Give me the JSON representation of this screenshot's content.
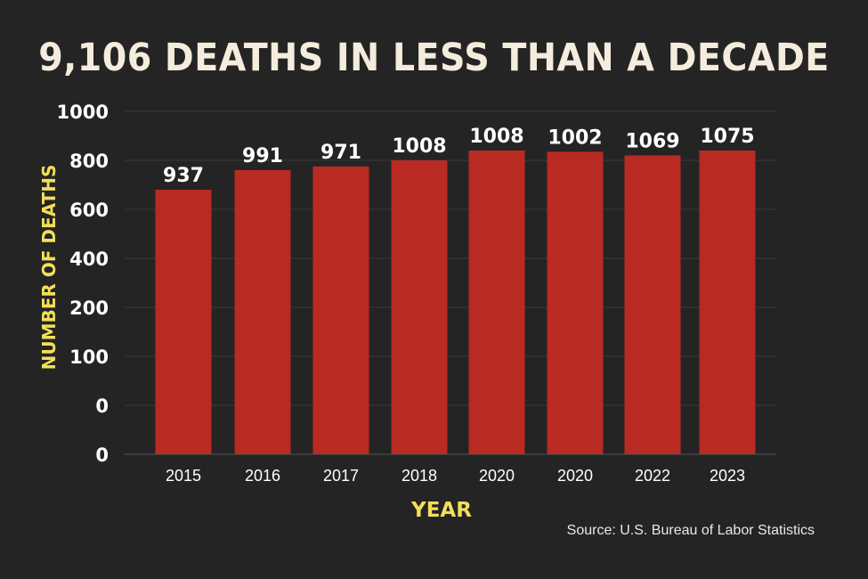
{
  "chart_data": {
    "type": "bar",
    "title": "9,106 DEATHS IN LESS THAN A DECADE",
    "xlabel": "YEAR",
    "ylabel": "NUMBER OF DEATHS",
    "categories": [
      "2015",
      "2016",
      "2017",
      "2018",
      "2020",
      "2020",
      "2022",
      "2023"
    ],
    "values": [
      937,
      991,
      971,
      1008,
      1008,
      1002,
      1069,
      1075
    ],
    "value_labels": [
      "937",
      "991",
      "971",
      "1008",
      "1008",
      "1002",
      "1069",
      "1075"
    ],
    "bar_heights_on_axis": [
      680,
      760,
      775,
      800,
      840,
      835,
      820,
      840
    ],
    "y_ticks": [
      "0",
      "0",
      "100",
      "200",
      "400",
      "600",
      "800",
      "1000"
    ],
    "grid": true,
    "legend": "none"
  },
  "source": "Source: U.S. Bureau of Labor Statistics",
  "colors": {
    "background": "#242424",
    "bar": "#b92a22",
    "title": "#f4ecdc",
    "axis_title": "#f2de5a",
    "tick_text": "#ffffff",
    "grid": "#3a3a3a"
  }
}
